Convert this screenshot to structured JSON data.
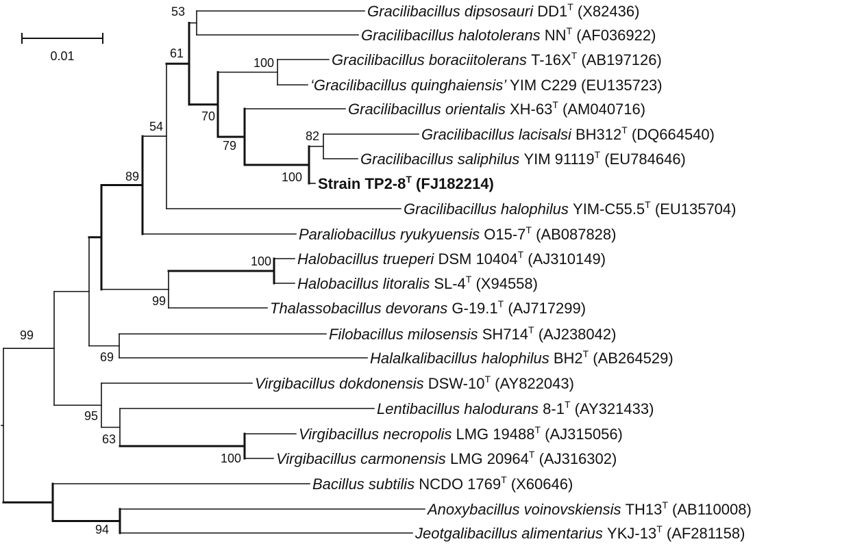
{
  "scale_bar": {
    "label": "0.01"
  },
  "taxa": [
    {
      "id": "t1",
      "species": "Gracilibacillus dipsosauri",
      "strain": "DD1",
      "type_mark": "T",
      "accession": "(X82436)"
    },
    {
      "id": "t2",
      "species": "Gracilibacillus halotolerans",
      "strain": "NN",
      "type_mark": "T",
      "accession": "(AF036922)"
    },
    {
      "id": "t3",
      "species": "Gracilibacillus boraciitolerans",
      "strain": "T-16X",
      "type_mark": "T",
      "accession": "(AB197126)"
    },
    {
      "id": "t4",
      "species": "‘Gracilibacillus quinghaiensis’",
      "strain": "YIM C229",
      "type_mark": "",
      "accession": "(EU135723)"
    },
    {
      "id": "t5",
      "species": "Gracilibacillus orientalis",
      "strain": "XH-63",
      "type_mark": "T",
      "accession": "(AM040716)"
    },
    {
      "id": "t6",
      "species": "Gracilibacillus lacisalsi",
      "strain": "BH312",
      "type_mark": "T",
      "accession": "(DQ664540)"
    },
    {
      "id": "t7",
      "species": "Gracilibacillus saliphilus",
      "strain": "YIM 91119",
      "type_mark": "T",
      "accession": "(EU784646)"
    },
    {
      "id": "t8",
      "species": "",
      "strain": "Strain TP2-8",
      "type_mark": "T",
      "accession": "(FJ182214)",
      "bold": true
    },
    {
      "id": "t9",
      "species": "Gracilibacillus halophilus",
      "strain": "YIM-C55.5",
      "type_mark": "T",
      "accession": "(EU135704)"
    },
    {
      "id": "t10",
      "species": "Paraliobacillus ryukyuensis",
      "strain": "O15-7",
      "type_mark": "T",
      "accession": "(AB087828)"
    },
    {
      "id": "t11",
      "species": "Halobacillus trueperi",
      "strain": "DSM 10404",
      "type_mark": "T",
      "accession": "(AJ310149)"
    },
    {
      "id": "t12",
      "species": "Halobacillus litoralis",
      "strain": "SL-4",
      "type_mark": "T",
      "accession": "(X94558)"
    },
    {
      "id": "t13",
      "species": "Thalassobacillus devorans",
      "strain": "G-19.1",
      "type_mark": "T",
      "accession": "(AJ717299)"
    },
    {
      "id": "t14",
      "species": "Filobacillus milosensis",
      "strain": "SH714",
      "type_mark": "T",
      "accession": "(AJ238042)"
    },
    {
      "id": "t15",
      "species": "Halalkalibacillus halophilus",
      "strain": "BH2",
      "type_mark": "T",
      "accession": "(AB264529)"
    },
    {
      "id": "t16",
      "species": "Virgibacillus dokdonensis",
      "strain": "DSW-10",
      "type_mark": "T",
      "accession": "(AY822043)"
    },
    {
      "id": "t17",
      "species": "Lentibacillus halodurans",
      "strain": "8-1",
      "type_mark": "T",
      "accession": "(AY321433)"
    },
    {
      "id": "t18",
      "species": "Virgibacillus necropolis",
      "strain": "LMG 19488",
      "type_mark": "T",
      "accession": "(AJ315056)"
    },
    {
      "id": "t19",
      "species": "Virgibacillus carmonensis",
      "strain": "LMG 20964",
      "type_mark": "T",
      "accession": "(AJ316302)"
    },
    {
      "id": "t20",
      "species": "Bacillus subtilis",
      "strain": "NCDO 1769",
      "type_mark": "T",
      "accession": "(X60646)"
    },
    {
      "id": "t21",
      "species": "Anoxybacillus voinovskiensis",
      "strain": "TH13",
      "type_mark": "T",
      "accession": "(AB110008)"
    },
    {
      "id": "t22",
      "species": "Jeotgalibacillus alimentarius",
      "strain": "YKJ-13",
      "type_mark": "T",
      "accession": "(AF281158)"
    }
  ],
  "bootstrap": {
    "b53": "53",
    "b61": "61",
    "b100a": "100",
    "b70": "70",
    "b79": "79",
    "b82": "82",
    "b100b": "100",
    "b54": "54",
    "b89": "89",
    "b100c": "100",
    "b99a": "99",
    "b99b": "99",
    "b69": "69",
    "b95": "95",
    "b63": "63",
    "b100d": "100",
    "b94": "94"
  }
}
